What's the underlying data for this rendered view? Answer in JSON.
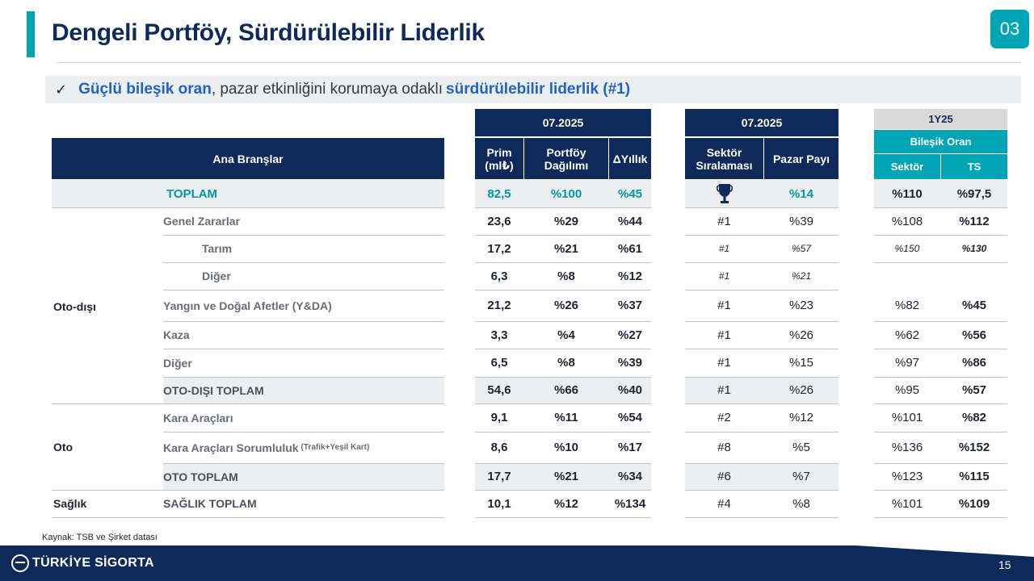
{
  "header": {
    "title": "Dengeli Portföy, Sürdürülebilir Liderlik",
    "section_badge": "03"
  },
  "highlight": {
    "check": "✓",
    "part1": "Güçlü bileşik oran",
    "part2": ", pazar etkinliğini korumaya odaklı",
    "part3": "sürdürülebilir liderlik (#1)"
  },
  "table": {
    "branches_header": "Ana Branşlar",
    "period_left": "07.2025",
    "period_mid": "07.2025",
    "period_right": "1Y25",
    "combined_ratio": "Bileşik Oran",
    "col_prim": "Prim (ml₺)",
    "col_portfoy": "Portföy Dağılımı",
    "col_yillik": "ΔYıllık",
    "col_sektor_sira": "Sektör Sıralaması",
    "col_pazar": "Pazar Payı",
    "col_sektor": "Sektör",
    "col_ts": "TS",
    "categories": {
      "otodisi": "Oto-dışı",
      "oto": "Oto",
      "saglik": "Sağlık"
    },
    "total": {
      "label": "TOPLAM",
      "prim": "82,5",
      "portfoy": "%100",
      "yillik": "%45",
      "trophy": "🏆",
      "pazar": "%14",
      "sektor": "%110",
      "ts": "%97,5"
    },
    "rows": [
      {
        "label": "Genel Zararlar",
        "prim": "23,6",
        "portfoy": "%29",
        "yillik": "%44",
        "sira": "#1",
        "pazar": "%39",
        "sektor": "%108",
        "ts": "%112"
      },
      {
        "label": "Tarım",
        "prim": "17,2",
        "portfoy": "%21",
        "yillik": "%61",
        "sira": "#1",
        "pazar": "%57",
        "sektor": "%150",
        "ts": "%130"
      },
      {
        "label": "Diğer",
        "prim": "6,3",
        "portfoy": "%8",
        "yillik": "%12",
        "sira": "#1",
        "pazar": "%21",
        "sektor": "",
        "ts": ""
      },
      {
        "label": "Yangın ve Doğal Afetler (Y&DA)",
        "prim": "21,2",
        "portfoy": "%26",
        "yillik": "%37",
        "sira": "#1",
        "pazar": "%23",
        "sektor": "%82",
        "ts": "%45"
      },
      {
        "label": "Kaza",
        "prim": "3,3",
        "portfoy": "%4",
        "yillik": "%27",
        "sira": "#1",
        "pazar": "%26",
        "sektor": "%62",
        "ts": "%56"
      },
      {
        "label": "Diğer",
        "prim": "6,5",
        "portfoy": "%8",
        "yillik": "%39",
        "sira": "#1",
        "pazar": "%15",
        "sektor": "%97",
        "ts": "%86"
      },
      {
        "label": "OTO-DIŞI TOPLAM",
        "prim": "54,6",
        "portfoy": "%66",
        "yillik": "%40",
        "sira": "#1",
        "pazar": "%26",
        "sektor": "%95",
        "ts": "%57"
      },
      {
        "label": "Kara Araçları",
        "prim": "9,1",
        "portfoy": "%11",
        "yillik": "%54",
        "sira": "#2",
        "pazar": "%12",
        "sektor": "%101",
        "ts": "%82"
      },
      {
        "label": "Kara Araçları Sorumluluk",
        "label_note": "(Trafik+Yeşil Kart)",
        "prim": "8,6",
        "portfoy": "%10",
        "yillik": "%17",
        "sira": "#8",
        "pazar": "%5",
        "sektor": "%136",
        "ts": "%152"
      },
      {
        "label": "OTO TOPLAM",
        "prim": "17,7",
        "portfoy": "%21",
        "yillik": "%34",
        "sira": "#6",
        "pazar": "%7",
        "sektor": "%123",
        "ts": "%115"
      },
      {
        "label": "SAĞLIK TOPLAM",
        "prim": "10,1",
        "portfoy": "%12",
        "yillik": "%134",
        "sira": "#4",
        "pazar": "%8",
        "sektor": "%101",
        "ts": "%109"
      }
    ]
  },
  "footer": {
    "source": "Kaynak: TSB ve Şirket datası",
    "logo_text": "TÜRKİYE SİGORTA",
    "page_number": "15"
  },
  "colors": {
    "navy": "#0e2a5a",
    "teal": "#00a5b5",
    "accent_text": "#1f63c8"
  }
}
